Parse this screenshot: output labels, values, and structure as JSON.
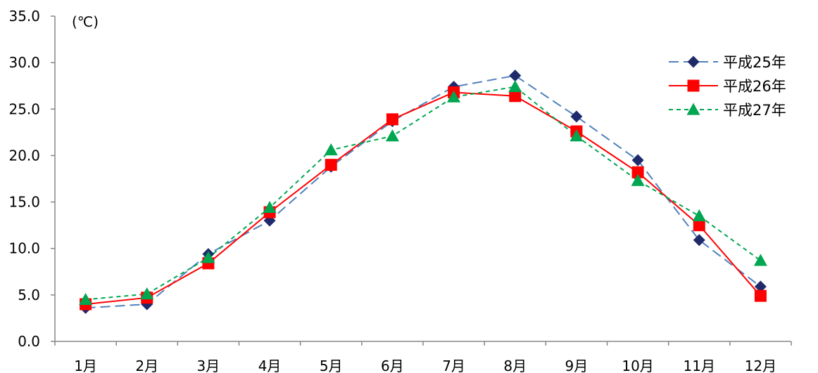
{
  "chart_data": {
    "type": "line",
    "title": "",
    "xlabel": "",
    "ylabel": "(℃)",
    "ylim": [
      0,
      35
    ],
    "yticks": [
      "0.0",
      "5.0",
      "10.0",
      "15.0",
      "20.0",
      "25.0",
      "30.0",
      "35.0"
    ],
    "categories": [
      "1月",
      "2月",
      "3月",
      "4月",
      "5月",
      "6月",
      "7月",
      "8月",
      "9月",
      "10月",
      "11月",
      "12月"
    ],
    "grid": false,
    "legend_position": "top-right",
    "series": [
      {
        "name": "平成25年",
        "values": [
          3.6,
          4.0,
          9.4,
          13.0,
          18.8,
          23.7,
          27.4,
          28.6,
          24.2,
          19.5,
          10.9,
          5.9
        ],
        "color": "#4f81bd",
        "marker": "diamond",
        "marker_color": "#1f2a6b",
        "line_style": "long-dash"
      },
      {
        "name": "平成26年",
        "values": [
          4.0,
          4.7,
          8.4,
          13.9,
          19.0,
          23.9,
          26.8,
          26.4,
          22.6,
          18.2,
          12.5,
          4.9
        ],
        "color": "#ff0000",
        "marker": "square",
        "marker_color": "#ff0000",
        "line_style": "solid"
      },
      {
        "name": "平成27年",
        "values": [
          4.5,
          5.1,
          9.0,
          14.4,
          20.6,
          22.1,
          26.3,
          27.4,
          22.1,
          17.3,
          13.5,
          8.7
        ],
        "color": "#00a650",
        "marker": "triangle",
        "marker_color": "#00a650",
        "line_style": "short-dash"
      }
    ]
  }
}
